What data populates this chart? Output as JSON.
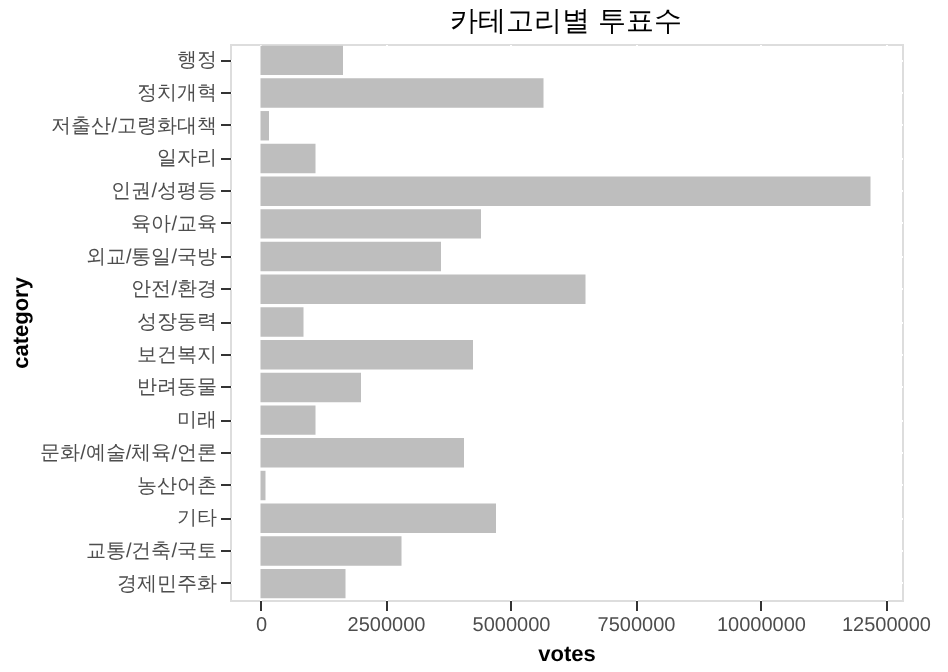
{
  "chart_data": {
    "type": "bar",
    "orientation": "horizontal",
    "title": "카테고리별 투표수",
    "xlabel": "votes",
    "ylabel": "category",
    "categories": [
      "행정",
      "정치개혁",
      "저출산/고령화대책",
      "일자리",
      "인권/성평등",
      "육아/교육",
      "외교/통일/국방",
      "안전/환경",
      "성장동력",
      "보건복지",
      "반려동물",
      "미래",
      "문화/예술/체육/언론",
      "농산어촌",
      "기타",
      "교통/건축/국토",
      "경제민주화"
    ],
    "values": [
      1650000,
      5660000,
      170000,
      1100000,
      12200000,
      4410000,
      3610000,
      6500000,
      860000,
      4250000,
      2010000,
      1100000,
      4070000,
      100000,
      4710000,
      2820000,
      1700000
    ],
    "color": "#bebebe",
    "xlim": [
      -610000,
      12830000
    ],
    "xticks": [
      0,
      2500000,
      5000000,
      7500000,
      10000000,
      12500000
    ],
    "grid": true
  }
}
